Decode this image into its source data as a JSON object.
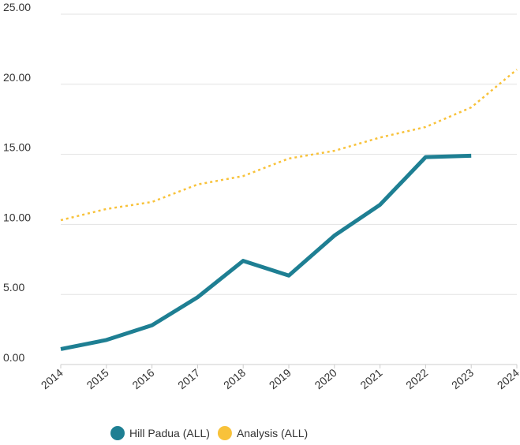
{
  "chart_data": {
    "type": "line",
    "x": [
      2014,
      2015,
      2016,
      2017,
      2018,
      2019,
      2020,
      2021,
      2022,
      2023,
      2024
    ],
    "series": [
      {
        "name": "Hill Padua (ALL)",
        "color": "#1e7f93",
        "linestyle": "solid",
        "values": [
          1.1,
          1.75,
          2.8,
          4.8,
          7.4,
          6.35,
          9.2,
          11.4,
          14.8,
          14.9,
          null
        ]
      },
      {
        "name": "Analysis (ALL)",
        "color": "#f8c23a",
        "linestyle": "dotted",
        "values": [
          10.3,
          11.1,
          11.6,
          12.85,
          13.45,
          14.7,
          15.25,
          16.2,
          16.95,
          18.35,
          21.05
        ]
      }
    ],
    "xlim": [
      2014,
      2024
    ],
    "xticks": [
      2014,
      2015,
      2016,
      2017,
      2018,
      2019,
      2020,
      2021,
      2022,
      2023,
      2024
    ],
    "ylim": [
      0,
      25
    ],
    "yticks": [
      {
        "value": 0,
        "label": "0.00"
      },
      {
        "value": 5,
        "label": "5.00"
      },
      {
        "value": 10,
        "label": "10.00"
      },
      {
        "value": 15,
        "label": "15.00"
      },
      {
        "value": 20,
        "label": "20.00"
      },
      {
        "value": 25,
        "label": "25.00"
      }
    ],
    "grid": true,
    "legend": "bottom"
  }
}
